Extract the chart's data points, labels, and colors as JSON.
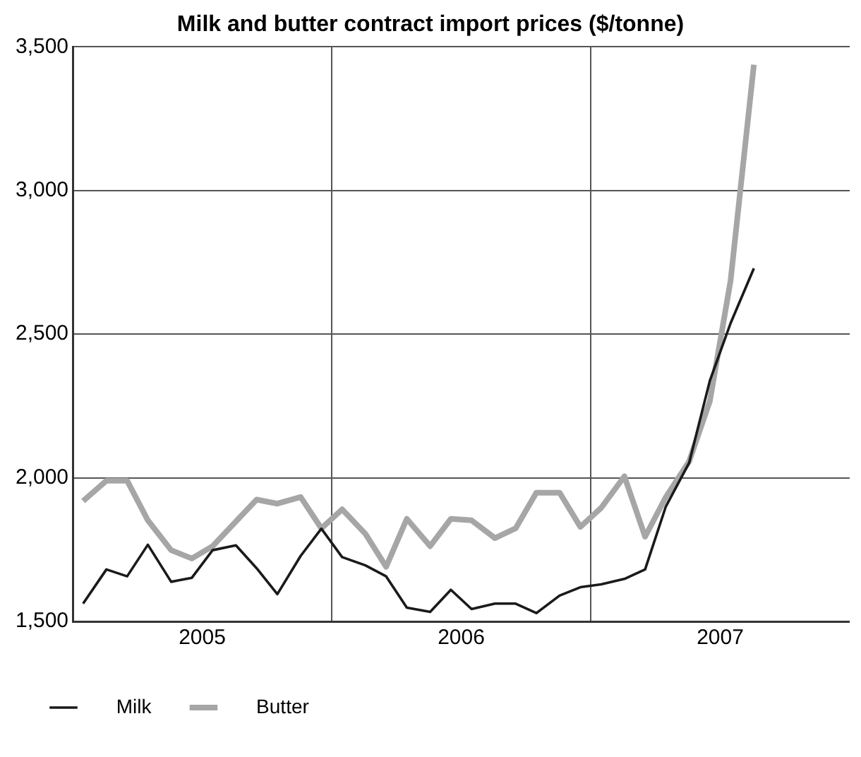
{
  "chart_data": {
    "type": "line",
    "title": "Milk and butter contract import prices ($/tonne)",
    "x": [
      2005.04,
      2005.13,
      2005.21,
      2005.29,
      2005.38,
      2005.46,
      2005.54,
      2005.63,
      2005.71,
      2005.79,
      2005.88,
      2005.96,
      2006.04,
      2006.13,
      2006.21,
      2006.29,
      2006.38,
      2006.46,
      2006.54,
      2006.63,
      2006.71,
      2006.79,
      2006.88,
      2006.96,
      2007.04,
      2007.13,
      2007.21,
      2007.29,
      2007.38,
      2007.46,
      2007.54,
      2007.63
    ],
    "series": [
      {
        "name": "Milk",
        "color": "#1a1a1a",
        "values": [
          1562,
          1681,
          1657,
          1767,
          1638,
          1652,
          1748,
          1765,
          1685,
          1595,
          1728,
          1823,
          1724,
          1695,
          1657,
          1548,
          1533,
          1610,
          1543,
          1562,
          1562,
          1529,
          1590,
          1619,
          1629,
          1648,
          1681,
          1900,
          2052,
          2338,
          2538,
          2729
        ]
      },
      {
        "name": "Butter",
        "color": "#a6a6a6",
        "values": [
          1919,
          1990,
          1990,
          1852,
          1748,
          1719,
          1762,
          1848,
          1924,
          1910,
          1933,
          1824,
          1890,
          1805,
          1690,
          1857,
          1762,
          1857,
          1852,
          1790,
          1824,
          1948,
          1948,
          1829,
          1895,
          2005,
          1795,
          1933,
          2057,
          2267,
          2686,
          3438
        ]
      }
    ],
    "xlim": [
      2005,
      2008
    ],
    "xticks": [
      {
        "value": 2005.5,
        "label": "2005"
      },
      {
        "value": 2006,
        "label": null
      },
      {
        "value": 2006.5,
        "label": "2006"
      },
      {
        "value": 2007,
        "label": null
      },
      {
        "value": 2007.5,
        "label": "2007"
      }
    ],
    "ylim": [
      1500,
      3500
    ],
    "yticks": [
      {
        "value": 1500,
        "label": "1,500"
      },
      {
        "value": 2000,
        "label": "2,000"
      },
      {
        "value": 2500,
        "label": "2,500"
      },
      {
        "value": 3000,
        "label": "3,000"
      },
      {
        "value": 3500,
        "label": "3,500"
      }
    ],
    "grid": true,
    "legend": "bottom",
    "marker": "none",
    "line_style": "solid"
  }
}
